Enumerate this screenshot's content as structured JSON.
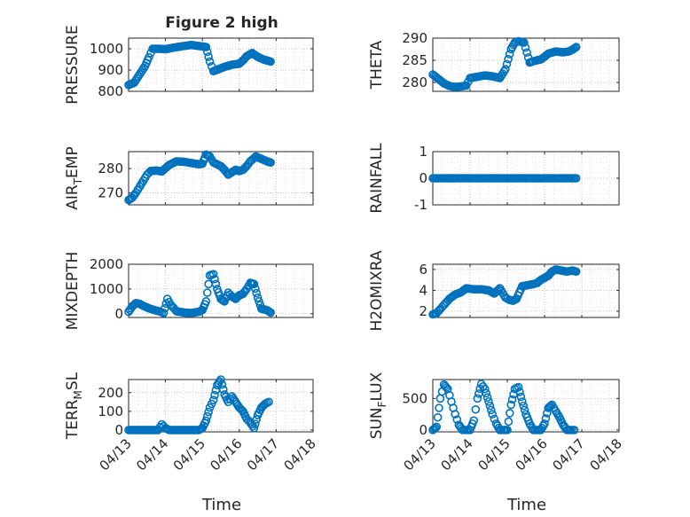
{
  "figure": {
    "title": "Figure 2 high",
    "xlabel": "Time",
    "marker_color": "#0072bd",
    "axis_color": "#262626",
    "grid_color": "#b0b0b0",
    "x_ticks": [
      "04/13",
      "04/14",
      "04/15",
      "04/16",
      "04/17",
      "04/18"
    ]
  },
  "chart_data": [
    {
      "type": "scatter",
      "name": "pressure",
      "ylabel": "PRESSURE",
      "ylim": [
        800,
        1050
      ],
      "yticks": [
        800,
        900,
        1000
      ],
      "x": [
        0,
        0.15,
        0.3,
        0.45,
        0.55,
        0.65,
        0.8,
        1.0,
        1.2,
        1.45,
        1.7,
        1.95,
        2.1,
        2.2,
        2.3,
        2.45,
        2.6,
        2.8,
        3.0,
        3.1,
        3.2,
        3.35,
        3.5,
        3.65,
        3.75,
        3.85
      ],
      "y": [
        830,
        840,
        880,
        920,
        960,
        1000,
        1000,
        998,
        1005,
        1012,
        1018,
        1012,
        1008,
        940,
        895,
        905,
        915,
        925,
        930,
        945,
        965,
        980,
        962,
        950,
        945,
        940
      ]
    },
    {
      "type": "scatter",
      "name": "theta",
      "ylabel": "THETA",
      "ylim": [
        278,
        290
      ],
      "yticks": [
        280,
        285,
        290
      ],
      "x": [
        0,
        0.15,
        0.3,
        0.45,
        0.6,
        0.75,
        0.9,
        1.0,
        1.2,
        1.4,
        1.6,
        1.8,
        1.95,
        2.1,
        2.2,
        2.3,
        2.45,
        2.6,
        2.7,
        2.8,
        2.9,
        3.0,
        3.1,
        3.3,
        3.5,
        3.65,
        3.75,
        3.85
      ],
      "y": [
        281.8,
        280.8,
        279.8,
        279.2,
        279,
        279.1,
        279.3,
        281,
        281.3,
        281.6,
        281.4,
        281,
        283,
        287.5,
        289,
        289.3,
        289,
        284.5,
        284.8,
        285,
        285.2,
        285.8,
        286.5,
        287,
        286.8,
        287,
        287.4,
        288
      ]
    },
    {
      "type": "scatter",
      "name": "air_temp",
      "ylabel_main": "AIR",
      "ylabel_sub": "T",
      "ylabel_rest": "EMP",
      "ylim": [
        265,
        287
      ],
      "yticks": [
        270,
        280
      ],
      "x": [
        0,
        0.1,
        0.2,
        0.3,
        0.4,
        0.5,
        0.6,
        0.75,
        0.9,
        1.1,
        1.3,
        1.5,
        1.7,
        1.9,
        2.0,
        2.1,
        2.2,
        2.3,
        2.5,
        2.6,
        2.7,
        2.8,
        2.9,
        3.0,
        3.1,
        3.2,
        3.3,
        3.45,
        3.6,
        3.75,
        3.85
      ],
      "y": [
        267,
        268,
        270,
        272.5,
        275,
        277.5,
        279,
        279.2,
        278.8,
        281.5,
        283,
        282.8,
        282.3,
        281.8,
        282,
        285.8,
        285,
        282.5,
        281,
        279.5,
        277.5,
        278.5,
        279.5,
        279,
        279.5,
        281,
        283,
        285,
        284,
        283,
        282.5
      ]
    },
    {
      "type": "scatter",
      "name": "rainfall",
      "ylabel": "RAINFALL",
      "ylim": [
        -1,
        1
      ],
      "yticks": [
        -1,
        0,
        1
      ],
      "x": [
        0,
        0.5,
        1.0,
        1.5,
        2.0,
        2.5,
        3.0,
        3.5,
        3.85
      ],
      "y": [
        0,
        0,
        0,
        0,
        0,
        0,
        0,
        0,
        0
      ]
    },
    {
      "type": "scatter",
      "name": "mixdepth",
      "ylabel": "MIXDEPTH",
      "ylim": [
        -150,
        2000
      ],
      "yticks": [
        0,
        1000,
        2000
      ],
      "x": [
        0,
        0.1,
        0.2,
        0.3,
        0.4,
        0.55,
        0.7,
        0.85,
        0.95,
        1.05,
        1.15,
        1.3,
        1.5,
        1.7,
        1.9,
        2.0,
        2.1,
        2.2,
        2.3,
        2.4,
        2.5,
        2.6,
        2.7,
        2.8,
        2.9,
        3.0,
        3.1,
        3.2,
        3.3,
        3.4,
        3.5,
        3.6,
        3.75,
        3.85
      ],
      "y": [
        80,
        300,
        430,
        400,
        320,
        220,
        150,
        90,
        30,
        600,
        350,
        100,
        50,
        30,
        80,
        150,
        500,
        1550,
        1600,
        1000,
        600,
        500,
        850,
        700,
        600,
        750,
        800,
        1000,
        1250,
        1200,
        650,
        200,
        150,
        50
      ]
    },
    {
      "type": "scatter",
      "name": "h2omixra",
      "ylabel": "H2OMIXRA",
      "ylim": [
        1.4,
        6.5
      ],
      "yticks": [
        2,
        4,
        6
      ],
      "x": [
        0,
        0.1,
        0.2,
        0.3,
        0.45,
        0.6,
        0.75,
        0.9,
        1.1,
        1.3,
        1.5,
        1.65,
        1.8,
        1.95,
        2.05,
        2.15,
        2.25,
        2.4,
        2.55,
        2.7,
        2.8,
        2.9,
        3.0,
        3.1,
        3.2,
        3.3,
        3.45,
        3.6,
        3.75,
        3.85
      ],
      "y": [
        1.7,
        1.8,
        2.2,
        2.6,
        3.2,
        3.6,
        3.8,
        4.2,
        4.1,
        4.1,
        4.0,
        3.7,
        4.2,
        3.3,
        3.1,
        3.0,
        3.2,
        4.4,
        4.5,
        4.6,
        4.7,
        5.0,
        5.2,
        5.4,
        5.8,
        6.0,
        5.9,
        5.8,
        5.9,
        5.8
      ]
    },
    {
      "type": "scatter",
      "name": "terr_msl",
      "ylabel_main": "TERR",
      "ylabel_sub": "M",
      "ylabel_rest": "SL",
      "ylim": [
        -10,
        270
      ],
      "yticks": [
        0,
        100,
        200
      ],
      "x": [
        0,
        0.2,
        0.4,
        0.6,
        0.8,
        0.9,
        1.0,
        1.1,
        1.2,
        1.4,
        1.6,
        1.8,
        1.9,
        2.0,
        2.1,
        2.2,
        2.3,
        2.4,
        2.5,
        2.6,
        2.7,
        2.8,
        2.9,
        3.0,
        3.1,
        3.2,
        3.3,
        3.4,
        3.5,
        3.6,
        3.7,
        3.8
      ],
      "y": [
        0,
        0,
        0,
        0,
        0,
        30,
        10,
        0,
        0,
        0,
        0,
        0,
        0,
        10,
        50,
        120,
        160,
        240,
        270,
        190,
        150,
        180,
        150,
        120,
        100,
        60,
        40,
        10,
        80,
        120,
        140,
        150
      ]
    },
    {
      "type": "scatter",
      "name": "sun_flux",
      "ylabel_main": "SUN",
      "ylabel_sub": "F",
      "ylabel_rest": "LUX",
      "ylim": [
        -30,
        800
      ],
      "yticks": [
        0,
        500
      ],
      "x": [
        0,
        0.1,
        0.2,
        0.3,
        0.4,
        0.5,
        0.6,
        0.7,
        0.8,
        0.9,
        1.0,
        1.1,
        1.2,
        1.3,
        1.4,
        1.5,
        1.6,
        1.7,
        1.8,
        1.9,
        2.0,
        2.1,
        2.2,
        2.3,
        2.4,
        2.5,
        2.6,
        2.7,
        2.8,
        2.9,
        3.0,
        3.1,
        3.2,
        3.3,
        3.4,
        3.5,
        3.6,
        3.7,
        3.8
      ],
      "y": [
        0,
        50,
        500,
        720,
        650,
        450,
        250,
        80,
        0,
        0,
        0,
        150,
        500,
        730,
        650,
        450,
        250,
        100,
        0,
        0,
        0,
        400,
        650,
        680,
        450,
        250,
        100,
        0,
        0,
        0,
        100,
        350,
        400,
        300,
        200,
        80,
        0,
        0,
        0
      ]
    }
  ]
}
